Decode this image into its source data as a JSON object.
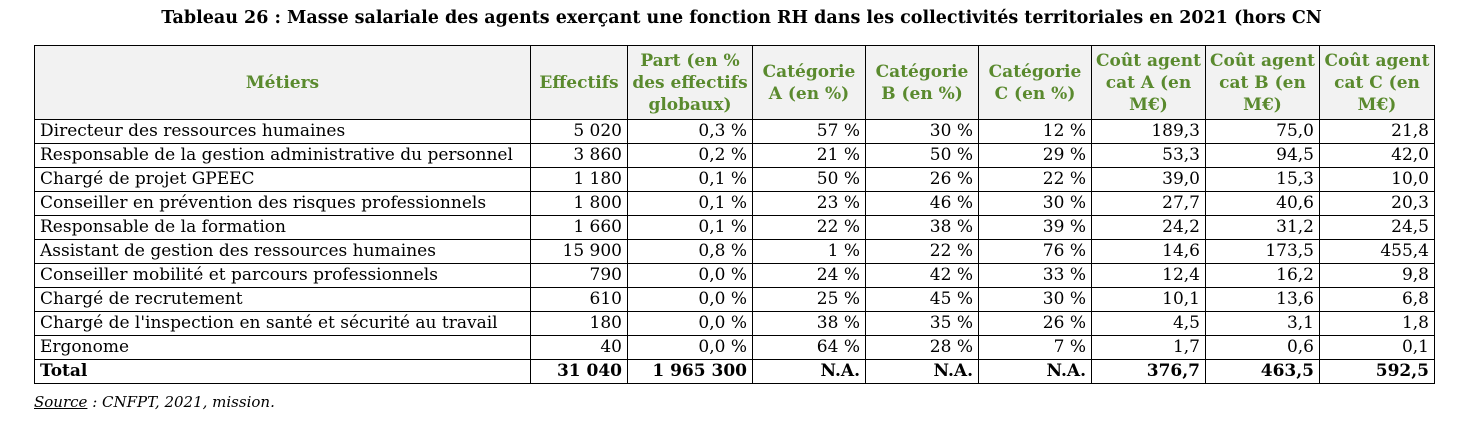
{
  "title": "Tableau 26 : Masse salariale des agents exerçant une fonction RH dans les collectivités territoriales en 2021 (hors CN",
  "headers": [
    "Métiers",
    "Effectifs",
    "Part (en % des effectifs globaux)",
    "Catégorie A (en %)",
    "Catégorie B (en %)",
    "Catégorie C (en %)",
    "Coût agent cat A (en M€)",
    "Coût agent cat B (en M€)",
    "Coût agent cat C (en M€)"
  ],
  "rows": [
    [
      "Directeur des ressources humaines",
      "5 020",
      "0,3 %",
      "57 %",
      "30 %",
      "12 %",
      "189,3",
      "75,0",
      "21,8"
    ],
    [
      "Responsable de la gestion administrative du personnel",
      "3 860",
      "0,2 %",
      "21 %",
      "50 %",
      "29 %",
      "53,3",
      "94,5",
      "42,0"
    ],
    [
      "Chargé de projet GPEEC",
      "1 180",
      "0,1 %",
      "50 %",
      "26 %",
      "22 %",
      "39,0",
      "15,3",
      "10,0"
    ],
    [
      "Conseiller en prévention des risques professionnels",
      "1 800",
      "0,1 %",
      "23 %",
      "46 %",
      "30 %",
      "27,7",
      "40,6",
      "20,3"
    ],
    [
      "Responsable de la formation",
      "1 660",
      "0,1 %",
      "22 %",
      "38 %",
      "39 %",
      "24,2",
      "31,2",
      "24,5"
    ],
    [
      "Assistant de gestion des ressources humaines",
      "15 900",
      "0,8 %",
      "1 %",
      "22 %",
      "76 %",
      "14,6",
      "173,5",
      "455,4"
    ],
    [
      "Conseiller mobilité et parcours professionnels",
      "790",
      "0,0 %",
      "24 %",
      "42 %",
      "33 %",
      "12,4",
      "16,2",
      "9,8"
    ],
    [
      "Chargé de recrutement",
      "610",
      "0,0 %",
      "25 %",
      "45 %",
      "30 %",
      "10,1",
      "13,6",
      "6,8"
    ],
    [
      "Chargé de l'inspection en santé et sécurité au travail",
      "180",
      "0,0 %",
      "38 %",
      "35 %",
      "26 %",
      "4,5",
      "3,1",
      "1,8"
    ],
    [
      "Ergonome",
      "40",
      "0,0 %",
      "64 %",
      "28 %",
      "7 %",
      "1,7",
      "0,6",
      "0,1"
    ]
  ],
  "total": [
    "Total",
    "31 040",
    "1 965 300",
    "N.A.",
    "N.A.",
    "N.A.",
    "376,7",
    "463,5",
    "592,5"
  ],
  "source_label": "Source",
  "source_text": " : CNFPT, 2021, mission.",
  "colors": {
    "header_text": "#5a8a2e",
    "header_bg": "#f2f2f2"
  }
}
